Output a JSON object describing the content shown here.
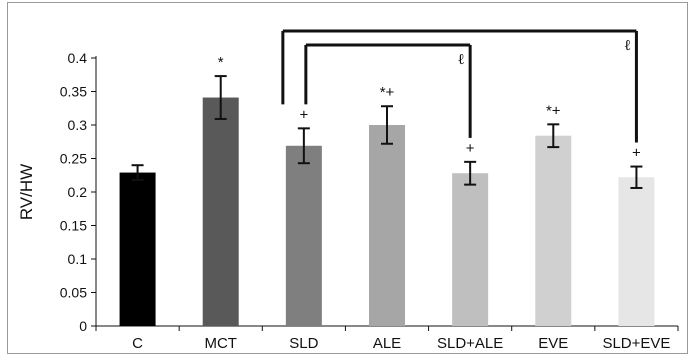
{
  "chart_data": {
    "type": "bar",
    "ylabel": "RV/HW",
    "xlabel": "",
    "title": "",
    "ylim": [
      0,
      0.4
    ],
    "yticks": [
      0,
      0.05,
      0.1,
      0.15,
      0.2,
      0.25,
      0.3,
      0.35,
      0.4
    ],
    "ytick_labels": [
      "0",
      "0.05",
      "0.1",
      "0.15",
      "0.2",
      "0.25",
      "0.3",
      "0.35",
      "0.4"
    ],
    "grid": false,
    "categories": [
      "C",
      "MCT",
      "SLD",
      "ALE",
      "SLD+ALE",
      "EVE",
      "SLD+EVE"
    ],
    "values": [
      0.229,
      0.341,
      0.269,
      0.3,
      0.228,
      0.284,
      0.222
    ],
    "errors": [
      0.011,
      0.032,
      0.026,
      0.028,
      0.017,
      0.017,
      0.016
    ],
    "bar_colors": [
      "#000000",
      "#595959",
      "#7f7f7f",
      "#a6a6a6",
      "#bfbfbf",
      "#d0d0d0",
      "#e6e6e6"
    ],
    "significance_marks": [
      "",
      "*",
      "+",
      "*+",
      "+",
      "*+",
      "+"
    ],
    "comparison_brackets": [
      {
        "from": "SLD",
        "to": "SLD+ALE",
        "label": "ℓ"
      },
      {
        "from": "SLD",
        "to": "SLD+EVE",
        "label": "ℓ"
      }
    ]
  }
}
